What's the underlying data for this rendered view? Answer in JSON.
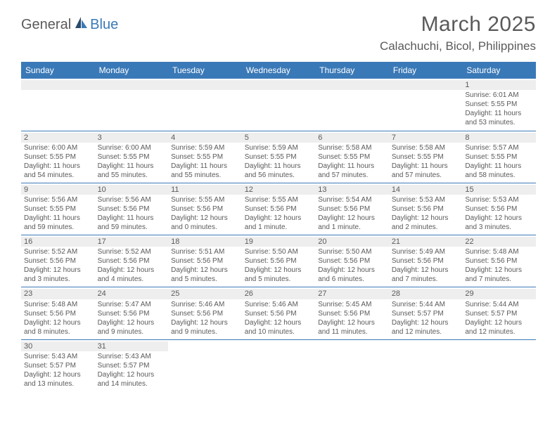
{
  "logo": {
    "part1": "General",
    "part2": "Blue"
  },
  "title": "March 2025",
  "location": "Calachuchi, Bicol, Philippines",
  "colors": {
    "header_bg": "#3a79b7",
    "header_fg": "#ffffff",
    "daynum_bg": "#eeeeee",
    "text": "#5a5a5a",
    "rule": "#3a79b7",
    "page_bg": "#ffffff"
  },
  "weekdays": [
    "Sunday",
    "Monday",
    "Tuesday",
    "Wednesday",
    "Thursday",
    "Friday",
    "Saturday"
  ],
  "weeks": [
    [
      null,
      null,
      null,
      null,
      null,
      null,
      {
        "n": "1",
        "sr": "Sunrise: 6:01 AM",
        "ss": "Sunset: 5:55 PM",
        "dl": "Daylight: 11 hours and 53 minutes."
      }
    ],
    [
      {
        "n": "2",
        "sr": "Sunrise: 6:00 AM",
        "ss": "Sunset: 5:55 PM",
        "dl": "Daylight: 11 hours and 54 minutes."
      },
      {
        "n": "3",
        "sr": "Sunrise: 6:00 AM",
        "ss": "Sunset: 5:55 PM",
        "dl": "Daylight: 11 hours and 55 minutes."
      },
      {
        "n": "4",
        "sr": "Sunrise: 5:59 AM",
        "ss": "Sunset: 5:55 PM",
        "dl": "Daylight: 11 hours and 55 minutes."
      },
      {
        "n": "5",
        "sr": "Sunrise: 5:59 AM",
        "ss": "Sunset: 5:55 PM",
        "dl": "Daylight: 11 hours and 56 minutes."
      },
      {
        "n": "6",
        "sr": "Sunrise: 5:58 AM",
        "ss": "Sunset: 5:55 PM",
        "dl": "Daylight: 11 hours and 57 minutes."
      },
      {
        "n": "7",
        "sr": "Sunrise: 5:58 AM",
        "ss": "Sunset: 5:55 PM",
        "dl": "Daylight: 11 hours and 57 minutes."
      },
      {
        "n": "8",
        "sr": "Sunrise: 5:57 AM",
        "ss": "Sunset: 5:55 PM",
        "dl": "Daylight: 11 hours and 58 minutes."
      }
    ],
    [
      {
        "n": "9",
        "sr": "Sunrise: 5:56 AM",
        "ss": "Sunset: 5:55 PM",
        "dl": "Daylight: 11 hours and 59 minutes."
      },
      {
        "n": "10",
        "sr": "Sunrise: 5:56 AM",
        "ss": "Sunset: 5:56 PM",
        "dl": "Daylight: 11 hours and 59 minutes."
      },
      {
        "n": "11",
        "sr": "Sunrise: 5:55 AM",
        "ss": "Sunset: 5:56 PM",
        "dl": "Daylight: 12 hours and 0 minutes."
      },
      {
        "n": "12",
        "sr": "Sunrise: 5:55 AM",
        "ss": "Sunset: 5:56 PM",
        "dl": "Daylight: 12 hours and 1 minute."
      },
      {
        "n": "13",
        "sr": "Sunrise: 5:54 AM",
        "ss": "Sunset: 5:56 PM",
        "dl": "Daylight: 12 hours and 1 minute."
      },
      {
        "n": "14",
        "sr": "Sunrise: 5:53 AM",
        "ss": "Sunset: 5:56 PM",
        "dl": "Daylight: 12 hours and 2 minutes."
      },
      {
        "n": "15",
        "sr": "Sunrise: 5:53 AM",
        "ss": "Sunset: 5:56 PM",
        "dl": "Daylight: 12 hours and 3 minutes."
      }
    ],
    [
      {
        "n": "16",
        "sr": "Sunrise: 5:52 AM",
        "ss": "Sunset: 5:56 PM",
        "dl": "Daylight: 12 hours and 3 minutes."
      },
      {
        "n": "17",
        "sr": "Sunrise: 5:52 AM",
        "ss": "Sunset: 5:56 PM",
        "dl": "Daylight: 12 hours and 4 minutes."
      },
      {
        "n": "18",
        "sr": "Sunrise: 5:51 AM",
        "ss": "Sunset: 5:56 PM",
        "dl": "Daylight: 12 hours and 5 minutes."
      },
      {
        "n": "19",
        "sr": "Sunrise: 5:50 AM",
        "ss": "Sunset: 5:56 PM",
        "dl": "Daylight: 12 hours and 5 minutes."
      },
      {
        "n": "20",
        "sr": "Sunrise: 5:50 AM",
        "ss": "Sunset: 5:56 PM",
        "dl": "Daylight: 12 hours and 6 minutes."
      },
      {
        "n": "21",
        "sr": "Sunrise: 5:49 AM",
        "ss": "Sunset: 5:56 PM",
        "dl": "Daylight: 12 hours and 7 minutes."
      },
      {
        "n": "22",
        "sr": "Sunrise: 5:48 AM",
        "ss": "Sunset: 5:56 PM",
        "dl": "Daylight: 12 hours and 7 minutes."
      }
    ],
    [
      {
        "n": "23",
        "sr": "Sunrise: 5:48 AM",
        "ss": "Sunset: 5:56 PM",
        "dl": "Daylight: 12 hours and 8 minutes."
      },
      {
        "n": "24",
        "sr": "Sunrise: 5:47 AM",
        "ss": "Sunset: 5:56 PM",
        "dl": "Daylight: 12 hours and 9 minutes."
      },
      {
        "n": "25",
        "sr": "Sunrise: 5:46 AM",
        "ss": "Sunset: 5:56 PM",
        "dl": "Daylight: 12 hours and 9 minutes."
      },
      {
        "n": "26",
        "sr": "Sunrise: 5:46 AM",
        "ss": "Sunset: 5:56 PM",
        "dl": "Daylight: 12 hours and 10 minutes."
      },
      {
        "n": "27",
        "sr": "Sunrise: 5:45 AM",
        "ss": "Sunset: 5:56 PM",
        "dl": "Daylight: 12 hours and 11 minutes."
      },
      {
        "n": "28",
        "sr": "Sunrise: 5:44 AM",
        "ss": "Sunset: 5:57 PM",
        "dl": "Daylight: 12 hours and 12 minutes."
      },
      {
        "n": "29",
        "sr": "Sunrise: 5:44 AM",
        "ss": "Sunset: 5:57 PM",
        "dl": "Daylight: 12 hours and 12 minutes."
      }
    ],
    [
      {
        "n": "30",
        "sr": "Sunrise: 5:43 AM",
        "ss": "Sunset: 5:57 PM",
        "dl": "Daylight: 12 hours and 13 minutes."
      },
      {
        "n": "31",
        "sr": "Sunrise: 5:43 AM",
        "ss": "Sunset: 5:57 PM",
        "dl": "Daylight: 12 hours and 14 minutes."
      },
      null,
      null,
      null,
      null,
      null
    ]
  ]
}
